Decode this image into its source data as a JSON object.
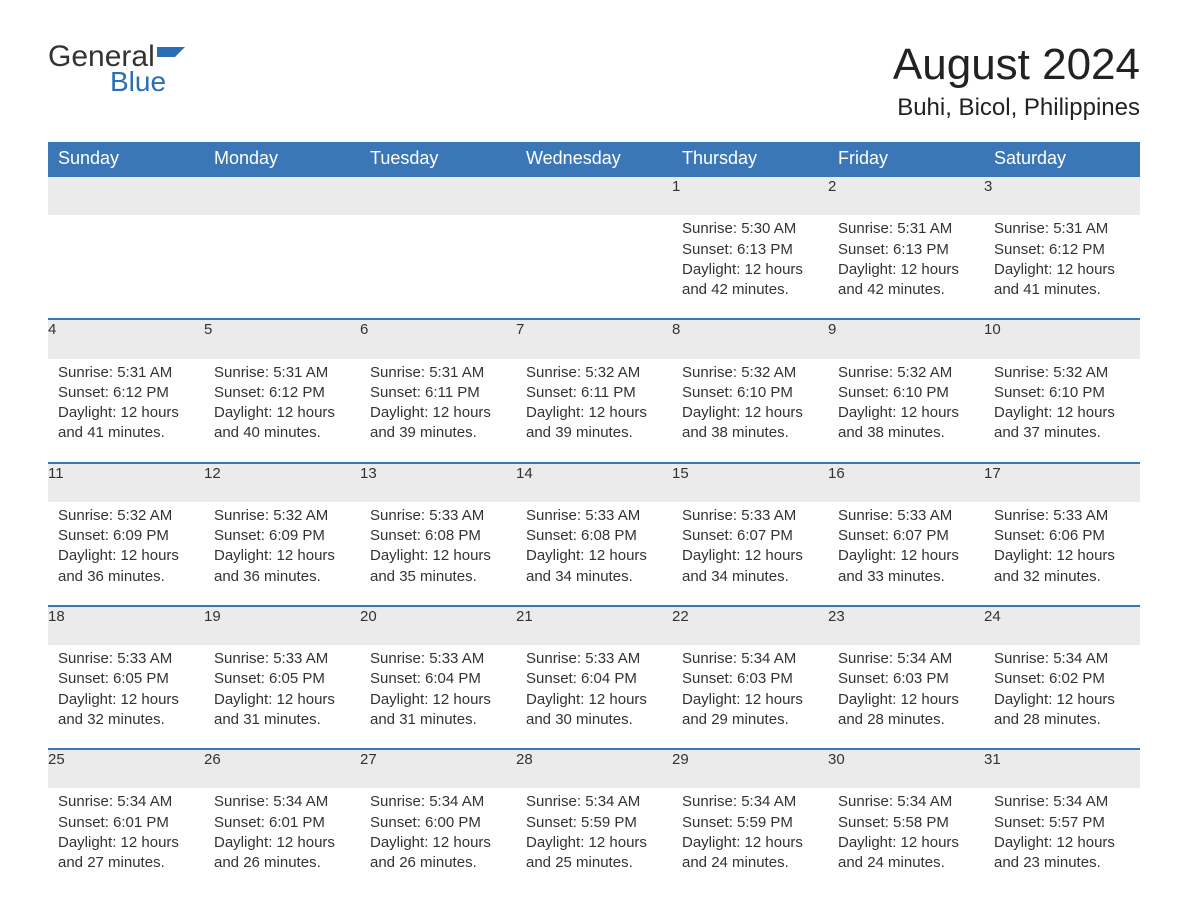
{
  "brand": {
    "text1": "General",
    "text2": "Blue",
    "accent_color": "#2a6fb5"
  },
  "title": "August 2024",
  "location": "Buhi, Bicol, Philippines",
  "header_bg": "#3b77b7",
  "header_fg": "#ffffff",
  "cell_bg": "#ebebeb",
  "text_color": "#333333",
  "weekdays": [
    "Sunday",
    "Monday",
    "Tuesday",
    "Wednesday",
    "Thursday",
    "Friday",
    "Saturday"
  ],
  "weeks": [
    [
      null,
      null,
      null,
      null,
      {
        "n": "1",
        "sunrise": "5:30 AM",
        "sunset": "6:13 PM",
        "daylight": "12 hours and 42 minutes."
      },
      {
        "n": "2",
        "sunrise": "5:31 AM",
        "sunset": "6:13 PM",
        "daylight": "12 hours and 42 minutes."
      },
      {
        "n": "3",
        "sunrise": "5:31 AM",
        "sunset": "6:12 PM",
        "daylight": "12 hours and 41 minutes."
      }
    ],
    [
      {
        "n": "4",
        "sunrise": "5:31 AM",
        "sunset": "6:12 PM",
        "daylight": "12 hours and 41 minutes."
      },
      {
        "n": "5",
        "sunrise": "5:31 AM",
        "sunset": "6:12 PM",
        "daylight": "12 hours and 40 minutes."
      },
      {
        "n": "6",
        "sunrise": "5:31 AM",
        "sunset": "6:11 PM",
        "daylight": "12 hours and 39 minutes."
      },
      {
        "n": "7",
        "sunrise": "5:32 AM",
        "sunset": "6:11 PM",
        "daylight": "12 hours and 39 minutes."
      },
      {
        "n": "8",
        "sunrise": "5:32 AM",
        "sunset": "6:10 PM",
        "daylight": "12 hours and 38 minutes."
      },
      {
        "n": "9",
        "sunrise": "5:32 AM",
        "sunset": "6:10 PM",
        "daylight": "12 hours and 38 minutes."
      },
      {
        "n": "10",
        "sunrise": "5:32 AM",
        "sunset": "6:10 PM",
        "daylight": "12 hours and 37 minutes."
      }
    ],
    [
      {
        "n": "11",
        "sunrise": "5:32 AM",
        "sunset": "6:09 PM",
        "daylight": "12 hours and 36 minutes."
      },
      {
        "n": "12",
        "sunrise": "5:32 AM",
        "sunset": "6:09 PM",
        "daylight": "12 hours and 36 minutes."
      },
      {
        "n": "13",
        "sunrise": "5:33 AM",
        "sunset": "6:08 PM",
        "daylight": "12 hours and 35 minutes."
      },
      {
        "n": "14",
        "sunrise": "5:33 AM",
        "sunset": "6:08 PM",
        "daylight": "12 hours and 34 minutes."
      },
      {
        "n": "15",
        "sunrise": "5:33 AM",
        "sunset": "6:07 PM",
        "daylight": "12 hours and 34 minutes."
      },
      {
        "n": "16",
        "sunrise": "5:33 AM",
        "sunset": "6:07 PM",
        "daylight": "12 hours and 33 minutes."
      },
      {
        "n": "17",
        "sunrise": "5:33 AM",
        "sunset": "6:06 PM",
        "daylight": "12 hours and 32 minutes."
      }
    ],
    [
      {
        "n": "18",
        "sunrise": "5:33 AM",
        "sunset": "6:05 PM",
        "daylight": "12 hours and 32 minutes."
      },
      {
        "n": "19",
        "sunrise": "5:33 AM",
        "sunset": "6:05 PM",
        "daylight": "12 hours and 31 minutes."
      },
      {
        "n": "20",
        "sunrise": "5:33 AM",
        "sunset": "6:04 PM",
        "daylight": "12 hours and 31 minutes."
      },
      {
        "n": "21",
        "sunrise": "5:33 AM",
        "sunset": "6:04 PM",
        "daylight": "12 hours and 30 minutes."
      },
      {
        "n": "22",
        "sunrise": "5:34 AM",
        "sunset": "6:03 PM",
        "daylight": "12 hours and 29 minutes."
      },
      {
        "n": "23",
        "sunrise": "5:34 AM",
        "sunset": "6:03 PM",
        "daylight": "12 hours and 28 minutes."
      },
      {
        "n": "24",
        "sunrise": "5:34 AM",
        "sunset": "6:02 PM",
        "daylight": "12 hours and 28 minutes."
      }
    ],
    [
      {
        "n": "25",
        "sunrise": "5:34 AM",
        "sunset": "6:01 PM",
        "daylight": "12 hours and 27 minutes."
      },
      {
        "n": "26",
        "sunrise": "5:34 AM",
        "sunset": "6:01 PM",
        "daylight": "12 hours and 26 minutes."
      },
      {
        "n": "27",
        "sunrise": "5:34 AM",
        "sunset": "6:00 PM",
        "daylight": "12 hours and 26 minutes."
      },
      {
        "n": "28",
        "sunrise": "5:34 AM",
        "sunset": "5:59 PM",
        "daylight": "12 hours and 25 minutes."
      },
      {
        "n": "29",
        "sunrise": "5:34 AM",
        "sunset": "5:59 PM",
        "daylight": "12 hours and 24 minutes."
      },
      {
        "n": "30",
        "sunrise": "5:34 AM",
        "sunset": "5:58 PM",
        "daylight": "12 hours and 24 minutes."
      },
      {
        "n": "31",
        "sunrise": "5:34 AM",
        "sunset": "5:57 PM",
        "daylight": "12 hours and 23 minutes."
      }
    ]
  ],
  "labels": {
    "sunrise": "Sunrise:",
    "sunset": "Sunset:",
    "daylight": "Daylight:"
  }
}
